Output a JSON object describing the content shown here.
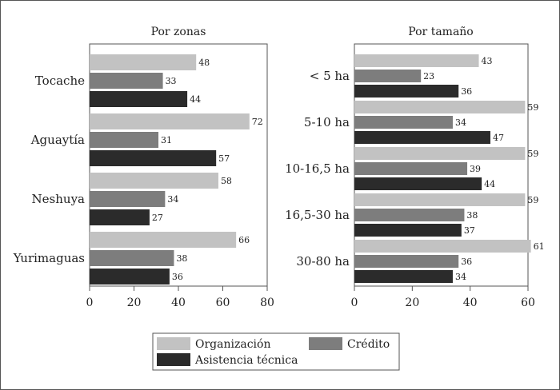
{
  "chart_data": [
    {
      "type": "bar",
      "orientation": "horizontal",
      "title": "Por zonas",
      "categories": [
        "Tocache",
        "Aguaytía",
        "Neshuya",
        "Yurimaguas"
      ],
      "series": [
        {
          "name": "Organización",
          "color": "#c2c2c2",
          "values": [
            48,
            72,
            58,
            66
          ]
        },
        {
          "name": "Crédito",
          "color": "#7d7d7d",
          "values": [
            33,
            31,
            34,
            38
          ]
        },
        {
          "name": "Asistencia técnica",
          "color": "#2b2b2b",
          "values": [
            44,
            57,
            27,
            36
          ]
        }
      ],
      "xlim": [
        0,
        80
      ],
      "xticks": [
        0,
        20,
        40,
        60,
        80
      ],
      "grid": false
    },
    {
      "type": "bar",
      "orientation": "horizontal",
      "title": "Por tamaño",
      "categories": [
        "< 5 ha",
        "5-10 ha",
        "10-16,5 ha",
        "16,5-30 ha",
        "30-80 ha"
      ],
      "series": [
        {
          "name": "Organización",
          "color": "#c2c2c2",
          "values": [
            43,
            59,
            59,
            59,
            61
          ]
        },
        {
          "name": "Crédito",
          "color": "#7d7d7d",
          "values": [
            23,
            34,
            39,
            38,
            36
          ]
        },
        {
          "name": "Asistencia técnica",
          "color": "#2b2b2b",
          "values": [
            36,
            47,
            44,
            37,
            34
          ]
        }
      ],
      "xlim": [
        0,
        60
      ],
      "xticks": [
        0,
        20,
        40,
        60
      ],
      "grid": false
    }
  ],
  "legend": {
    "placement": "bottom-center",
    "items": [
      {
        "label": "Organización",
        "color": "#c2c2c2"
      },
      {
        "label": "Crédito",
        "color": "#7d7d7d"
      },
      {
        "label": "Asistencia técnica",
        "color": "#2b2b2b"
      }
    ]
  }
}
